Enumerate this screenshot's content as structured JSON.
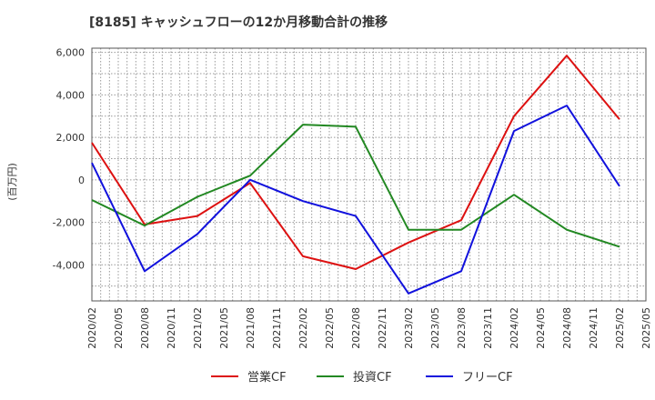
{
  "chart_data": {
    "type": "line",
    "title": "[8185]  キャッシュフローの12か月移動合計の推移",
    "xlabel": "",
    "ylabel": "(百万円)",
    "ylim": [
      -5700,
      6200
    ],
    "yticks": [
      6000,
      4000,
      2000,
      0,
      -2000,
      -4000
    ],
    "ytick_labels": [
      "6,000",
      "4,000",
      "2,000",
      "0",
      "-2,000",
      "-4,000"
    ],
    "categories": [
      "2020/02",
      "2020/05",
      "2020/08",
      "2020/11",
      "2021/02",
      "2021/05",
      "2021/08",
      "2021/11",
      "2022/02",
      "2022/05",
      "2022/08",
      "2022/11",
      "2023/02",
      "2023/05",
      "2023/08",
      "2023/11",
      "2024/02",
      "2024/05",
      "2024/08",
      "2024/11",
      "2025/02",
      "2025/05"
    ],
    "grid": true,
    "legend_position": "bottom",
    "series": [
      {
        "name": "営業CF",
        "color": "#dd1111",
        "x": [
          "2020/02",
          "2020/08",
          "2021/02",
          "2021/08",
          "2022/02",
          "2022/08",
          "2023/02",
          "2023/08",
          "2024/02",
          "2024/08",
          "2025/02"
        ],
        "values": [
          1750,
          -2100,
          -1700,
          -150,
          -3600,
          -4200,
          -2950,
          -1900,
          3000,
          5850,
          2850
        ]
      },
      {
        "name": "投資CF",
        "color": "#228822",
        "x": [
          "2020/02",
          "2020/08",
          "2021/02",
          "2021/08",
          "2022/02",
          "2022/08",
          "2023/02",
          "2023/08",
          "2024/02",
          "2024/08",
          "2025/02"
        ],
        "values": [
          -950,
          -2150,
          -800,
          200,
          2600,
          2500,
          -2350,
          -2350,
          -700,
          -2350,
          -3150
        ]
      },
      {
        "name": "フリーCF",
        "color": "#1111dd",
        "x": [
          "2020/02",
          "2020/08",
          "2021/02",
          "2021/08",
          "2022/02",
          "2022/08",
          "2023/02",
          "2023/08",
          "2024/02",
          "2024/08",
          "2025/02"
        ],
        "values": [
          800,
          -4300,
          -2550,
          0,
          -1000,
          -1700,
          -5350,
          -4300,
          2300,
          3500,
          -300
        ]
      }
    ]
  }
}
